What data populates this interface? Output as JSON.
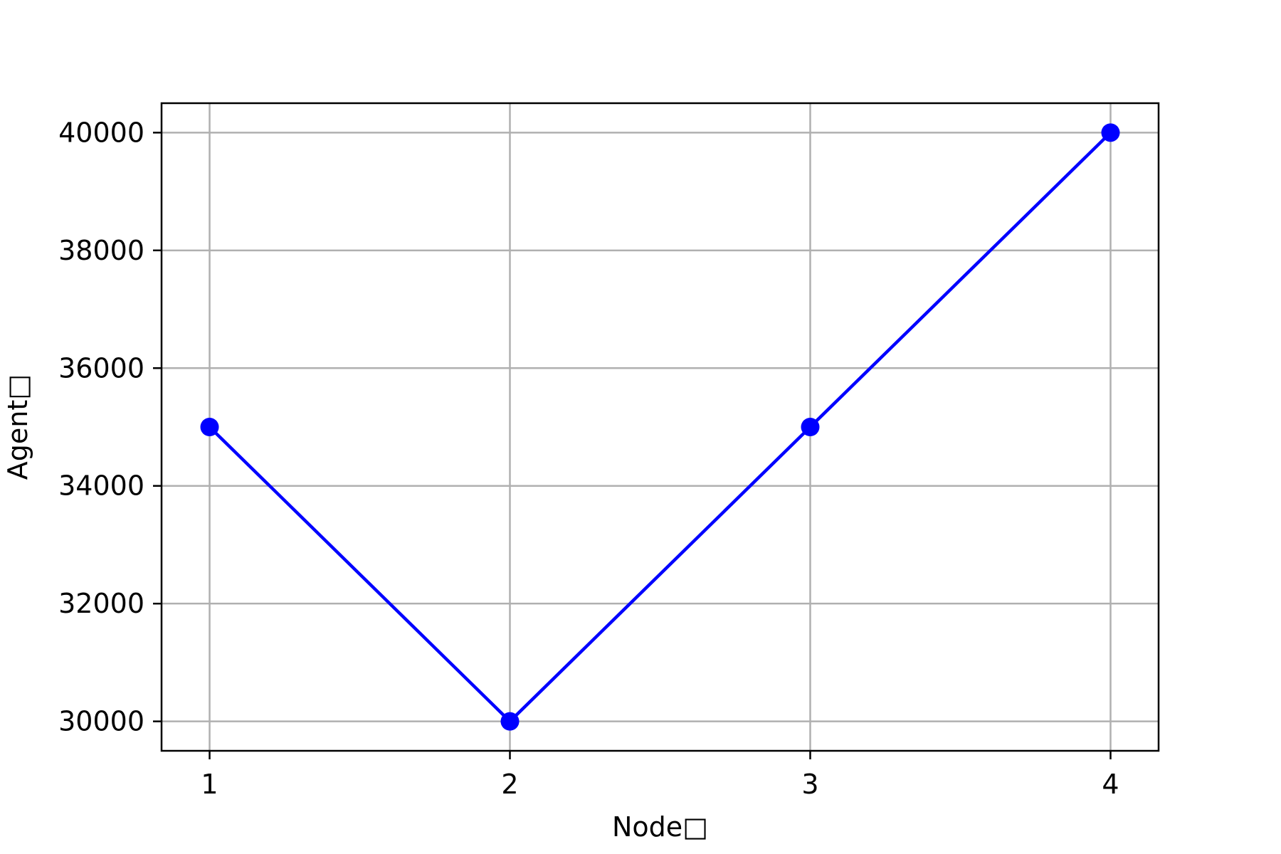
{
  "chart_data": {
    "type": "line",
    "title": "",
    "xlabel": "Node□",
    "ylabel": "Agent□",
    "x": [
      1,
      2,
      3,
      4
    ],
    "x_tick_labels": [
      "1",
      "2",
      "3",
      "4"
    ],
    "y_ticks": [
      30000,
      32000,
      34000,
      36000,
      38000,
      40000
    ],
    "y_tick_labels": [
      "30000",
      "32000",
      "34000",
      "36000",
      "38000",
      "40000"
    ],
    "xlim": [
      0.84,
      4.16
    ],
    "ylim": [
      29500,
      40500
    ],
    "grid": true,
    "series": [
      {
        "values": [
          35000,
          30000,
          35000,
          40000
        ],
        "color": "#0000ff",
        "marker": "circle"
      }
    ]
  }
}
